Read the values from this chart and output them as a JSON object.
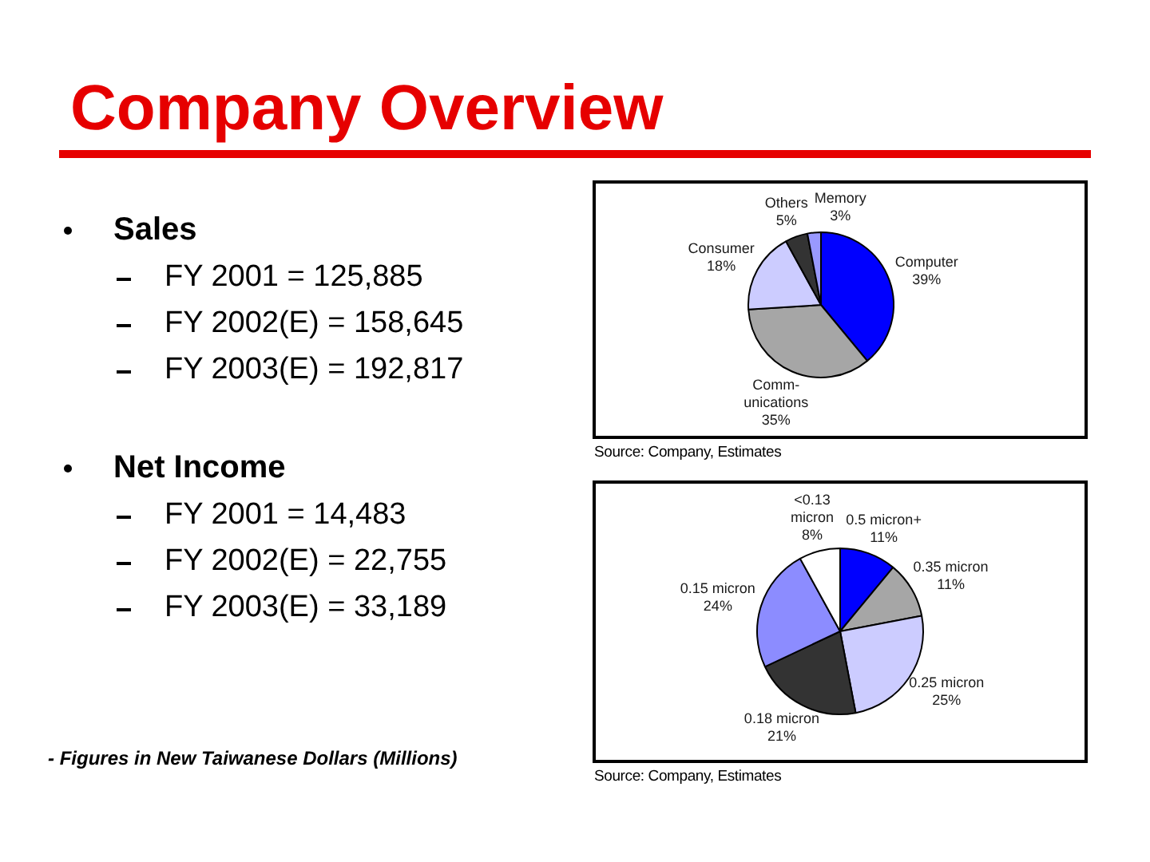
{
  "chart_data": [
    {
      "type": "other",
      "title": "Company Overview"
    },
    {
      "type": "other",
      "title": "Sales",
      "annotations": [
        "FY 2001 = 125,885",
        "FY 2002(E) = 158,645",
        "FY 2003(E) = 192,817"
      ]
    },
    {
      "type": "other",
      "title": "Net Income",
      "annotations": [
        "FY 2001 = 14,483",
        "FY 2002(E) = 22,755",
        "FY 2003(E) = 33,189"
      ]
    },
    {
      "type": "other",
      "annotations": [
        "- Figures in New Taiwanese Dollars (Millions)"
      ]
    },
    {
      "type": "pie",
      "categories": [
        "Computer",
        "Comm-\nunications",
        "Consumer",
        "Others",
        "Memory"
      ],
      "values": [
        39,
        35,
        18,
        5,
        3
      ],
      "value_labels": [
        "39%",
        "35%",
        "18%",
        "5%",
        "3%"
      ],
      "colors": [
        "#0000ff",
        "#a6a6a6",
        "#ccccff",
        "#333333",
        "#9999ff"
      ],
      "annotations": [
        "Source: Company, Estimates"
      ]
    },
    {
      "type": "pie",
      "categories": [
        "0.5 micron+",
        "0.35 micron",
        "0.25 micron",
        "0.18 micron",
        "0.15 micron",
        "<0.13\nmicron"
      ],
      "values": [
        11,
        11,
        25,
        21,
        24,
        8
      ],
      "value_labels": [
        "11%",
        "11%",
        "25%",
        "21%",
        "24%",
        "8%"
      ],
      "colors": [
        "#0000ff",
        "#a6a6a6",
        "#ccccff",
        "#333333",
        "#8c8cff",
        "#ffffff"
      ],
      "annotations": [
        "Source: Company, Estimates"
      ]
    }
  ]
}
